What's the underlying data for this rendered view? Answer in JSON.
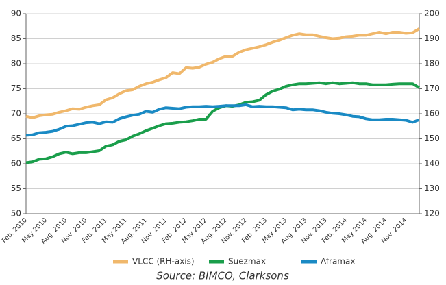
{
  "chart_data": {
    "type": "line",
    "categories": [
      "Feb. 2010",
      null,
      null,
      "May 2010",
      null,
      null,
      "Aug. 2010",
      null,
      null,
      "Nov. 2010",
      null,
      null,
      "Feb. 2011",
      null,
      null,
      "May 2011",
      null,
      null,
      "Aug. 2011",
      null,
      null,
      "Nov. 2011",
      null,
      null,
      "Feb. 2012",
      null,
      null,
      "May 2012",
      null,
      null,
      "Aug. 2012",
      null,
      null,
      "Nov. 2012",
      null,
      null,
      "Feb. 2013",
      null,
      null,
      "May 2013",
      null,
      null,
      "Aug. 2013",
      null,
      null,
      "Nov. 2013",
      null,
      null,
      "Feb. 2014",
      null,
      null,
      "May 2014",
      null,
      null,
      "Aug. 2014",
      null,
      null,
      "Nov. 2014",
      null,
      null
    ],
    "series": [
      {
        "name": "VLCC (RH-axis)",
        "color": "#f0b86c",
        "axis": "y2",
        "values": [
          159,
          158.4,
          159.2,
          159.6,
          159.8,
          160.6,
          161.2,
          162,
          161.8,
          162.6,
          163.2,
          163.6,
          165.6,
          166.4,
          168,
          169.2,
          169.6,
          171,
          172,
          172.6,
          173.6,
          174.4,
          176.4,
          176,
          178.4,
          178.2,
          178.6,
          179.8,
          180.6,
          182,
          183,
          183,
          184.6,
          185.6,
          186.2,
          186.8,
          187.6,
          188.6,
          189.4,
          190.4,
          191.4,
          192,
          191.6,
          191.6,
          191,
          190.4,
          190,
          190.2,
          190.8,
          191,
          191.4,
          191.4,
          192,
          192.6,
          192,
          192.6,
          192.6,
          192.2,
          192.4,
          194
        ]
      },
      {
        "name": "Suezmax",
        "color": "#1a9e4b",
        "values": [
          60.2,
          60.4,
          60.9,
          61.0,
          61.4,
          62.0,
          62.3,
          62.0,
          62.2,
          62.2,
          62.4,
          62.6,
          63.5,
          63.8,
          64.5,
          64.8,
          65.5,
          66.0,
          66.6,
          67.1,
          67.6,
          68.0,
          68.1,
          68.3,
          68.4,
          68.6,
          68.9,
          68.9,
          70.5,
          71.2,
          71.6,
          71.5,
          71.8,
          72.3,
          72.4,
          72.7,
          73.8,
          74.5,
          74.9,
          75.5,
          75.8,
          76.0,
          76.0,
          76.1,
          76.2,
          76.0,
          76.2,
          76.0,
          76.1,
          76.2,
          76.0,
          76.0,
          75.8,
          75.8,
          75.8,
          75.9,
          76.0,
          76.0,
          76.0,
          75.2
        ]
      },
      {
        "name": "Aframax",
        "color": "#1a8ac4",
        "values": [
          65.7,
          65.8,
          66.2,
          66.3,
          66.5,
          66.9,
          67.5,
          67.6,
          67.9,
          68.2,
          68.3,
          68.0,
          68.4,
          68.3,
          69.0,
          69.4,
          69.7,
          69.9,
          70.5,
          70.3,
          70.9,
          71.2,
          71.1,
          71.0,
          71.3,
          71.4,
          71.4,
          71.5,
          71.4,
          71.5,
          71.6,
          71.6,
          71.6,
          71.8,
          71.4,
          71.5,
          71.4,
          71.4,
          71.3,
          71.2,
          70.8,
          70.9,
          70.8,
          70.8,
          70.6,
          70.3,
          70.1,
          70.0,
          69.8,
          69.5,
          69.4,
          69.0,
          68.8,
          68.8,
          68.9,
          68.9,
          68.8,
          68.7,
          68.3,
          68.8
        ]
      }
    ],
    "ylim": [
      50,
      90
    ],
    "yticks": [
      50,
      55,
      60,
      65,
      70,
      75,
      80,
      85,
      90
    ],
    "y2lim": [
      120,
      200
    ],
    "y2ticks": [
      120,
      130,
      140,
      150,
      160,
      170,
      180,
      190,
      200
    ],
    "grid": true,
    "legend": "bottom",
    "source": "Source: BIMCO, Clarksons"
  }
}
